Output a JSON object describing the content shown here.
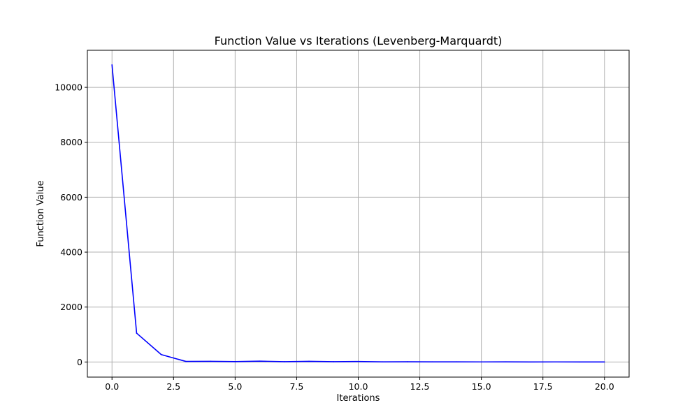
{
  "chart_data": {
    "type": "line",
    "title": "Function Value vs Iterations (Levenberg-Marquardt)",
    "xlabel": "Iterations",
    "ylabel": "Function Value",
    "xlim": [
      -1,
      21
    ],
    "ylim": [
      -550,
      11350
    ],
    "xticks": [
      0,
      2.5,
      5,
      7.5,
      10,
      12.5,
      15,
      17.5,
      20
    ],
    "xtick_labels": [
      "0.0",
      "2.5",
      "5.0",
      "7.5",
      "10.0",
      "12.5",
      "15.0",
      "17.5",
      "20.0"
    ],
    "yticks": [
      0,
      2000,
      4000,
      6000,
      8000,
      10000
    ],
    "ytick_labels": [
      "0",
      "2000",
      "4000",
      "6000",
      "8000",
      "10000"
    ],
    "grid": true,
    "series": [
      {
        "color": "#0000ff",
        "x": [
          0,
          1,
          2,
          3,
          4,
          5,
          6,
          7,
          8,
          9,
          10,
          11,
          12,
          13,
          14,
          15,
          16,
          17,
          18,
          19,
          20
        ],
        "values": [
          10820,
          1050,
          270,
          20,
          25,
          15,
          30,
          12,
          25,
          10,
          18,
          5,
          8,
          4,
          5,
          3,
          4,
          2,
          3,
          2,
          2
        ]
      }
    ]
  }
}
